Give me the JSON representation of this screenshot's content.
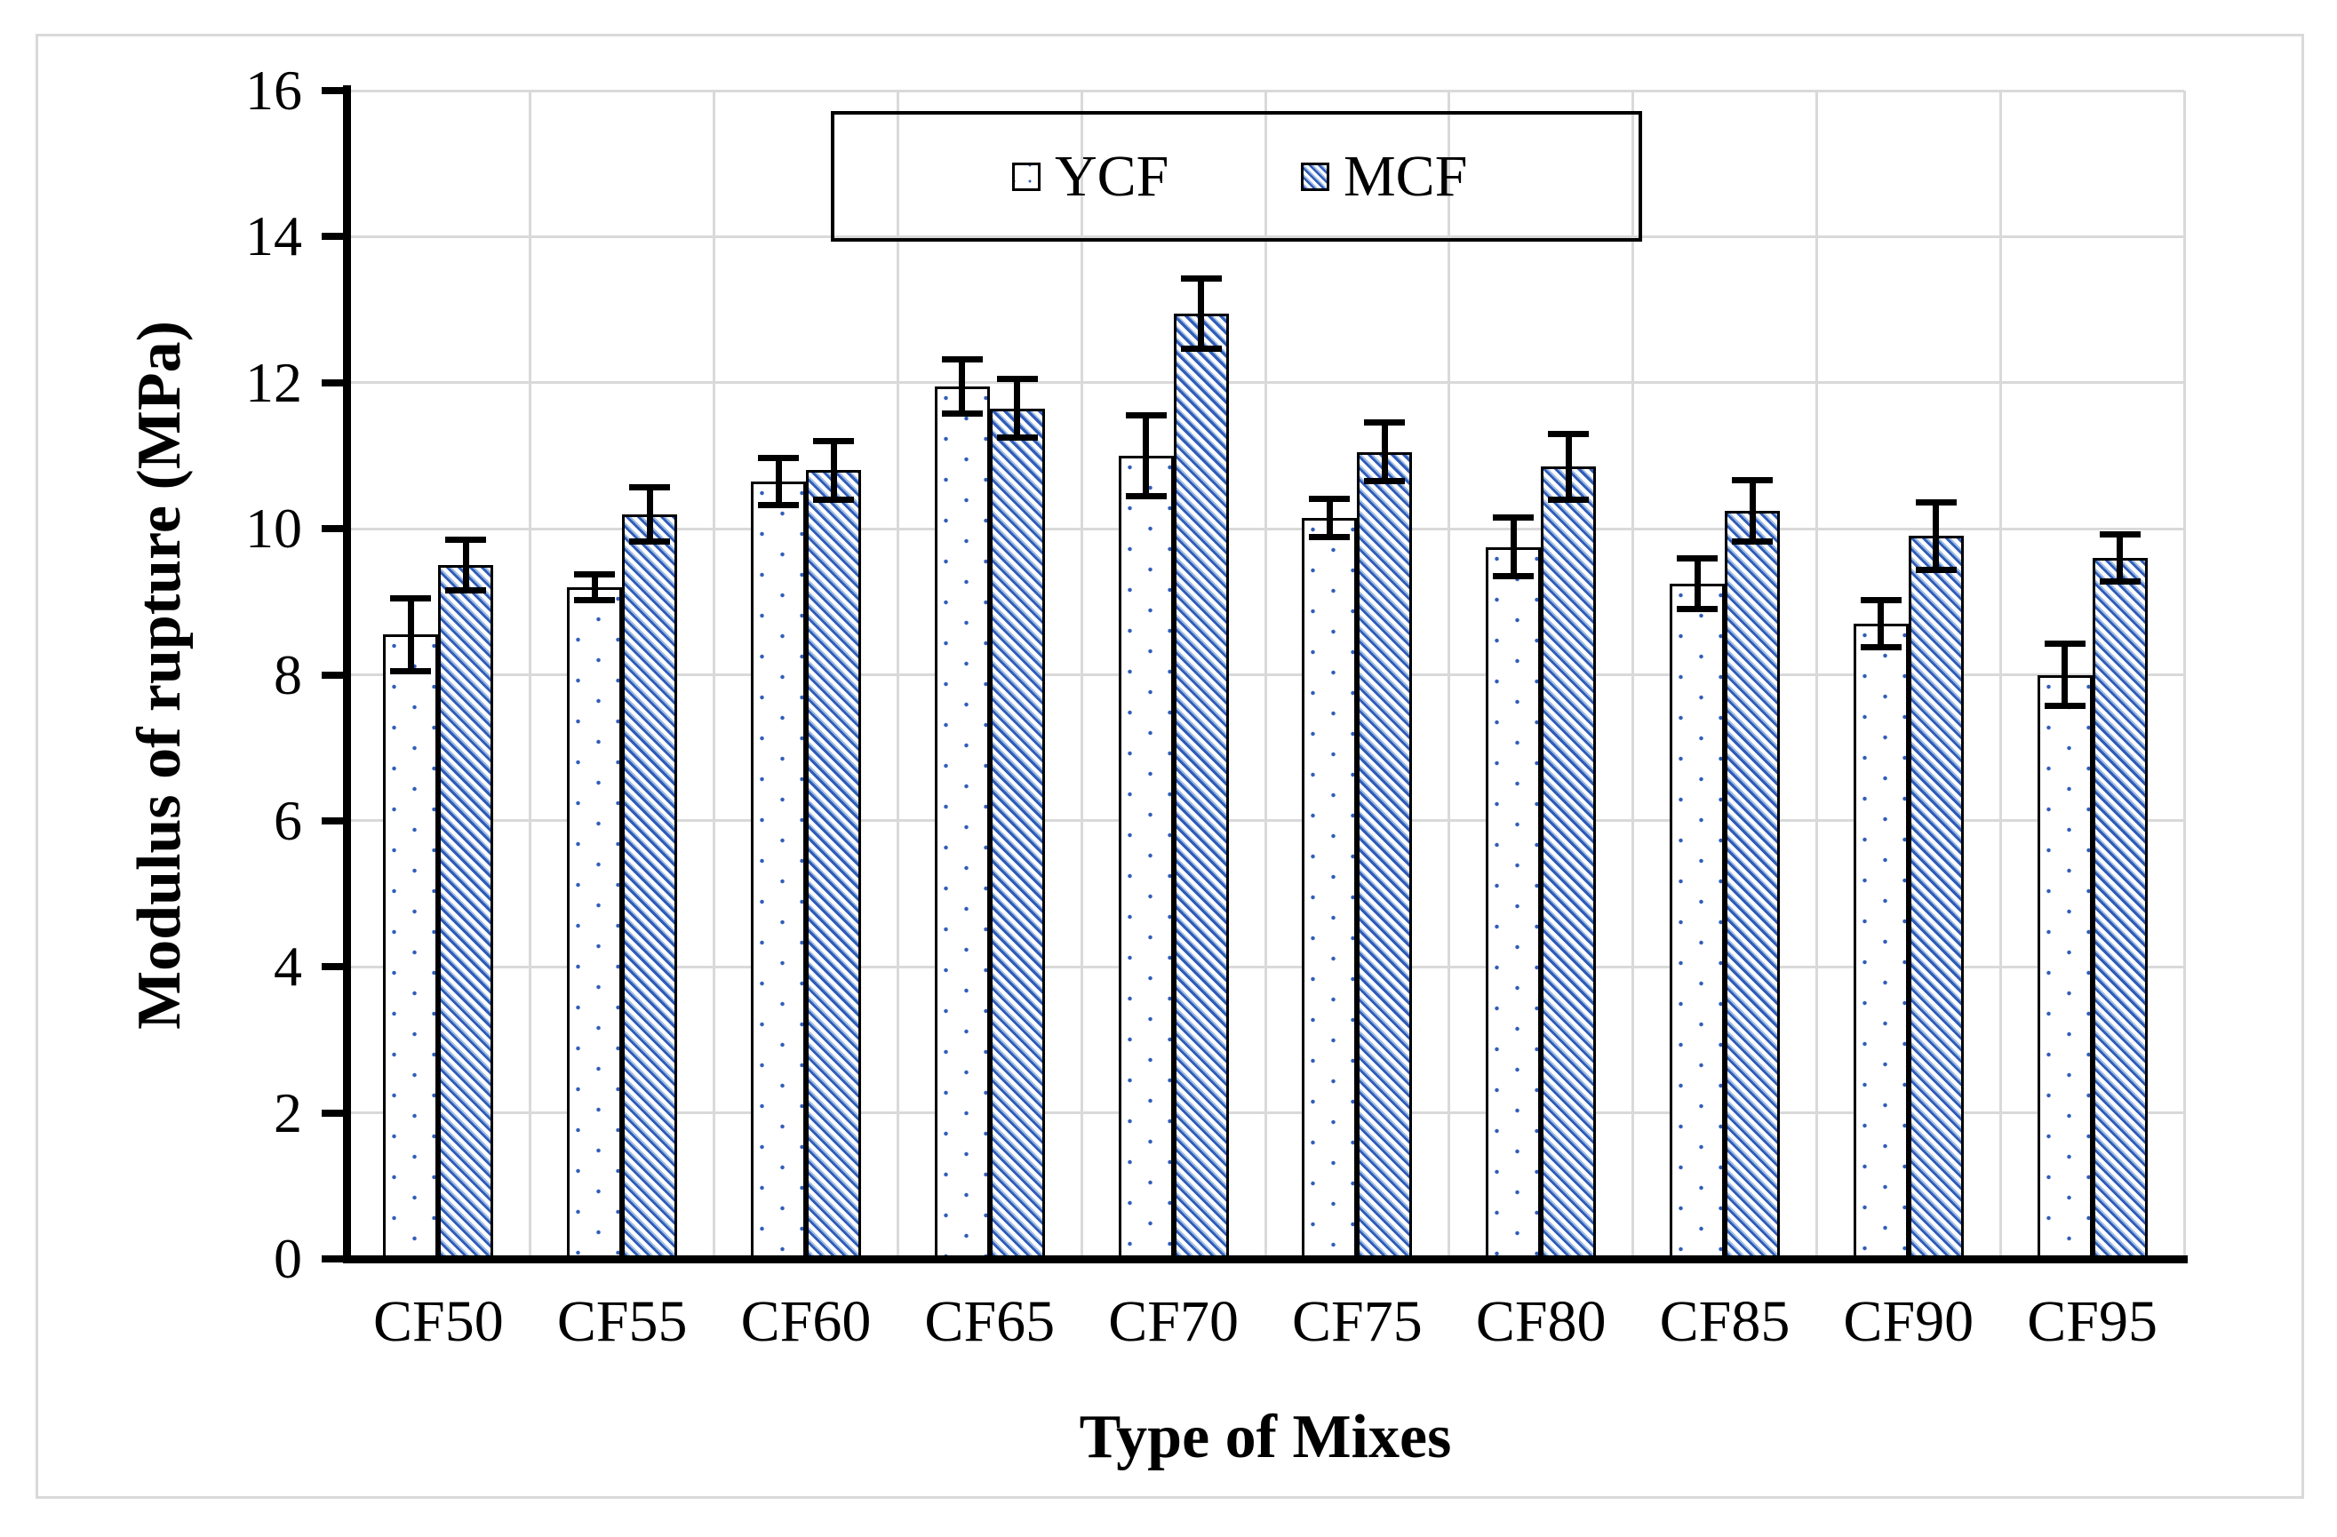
{
  "figure": {
    "background": "#ffffff",
    "frame_color": "#d9d9d9"
  },
  "chart_data": {
    "type": "bar",
    "title": "",
    "xlabel": "Type of Mixes",
    "ylabel": "Modulus of rupture (MPa)",
    "ylim": [
      0,
      16
    ],
    "ytick_step": 2,
    "ytick_labels": [
      "0",
      "2",
      "4",
      "6",
      "8",
      "10",
      "12",
      "14",
      "16"
    ],
    "grid": true,
    "legend_position": "top-center-inside",
    "categories": [
      "CF50",
      "CF55",
      "CF60",
      "CF65",
      "CF70",
      "CF75",
      "CF80",
      "CF85",
      "CF90",
      "CF95"
    ],
    "series": [
      {
        "name": "YCF",
        "pattern": "blue-dots-on-white",
        "values": [
          8.55,
          9.2,
          10.65,
          11.95,
          11.0,
          10.15,
          9.75,
          9.25,
          8.7,
          8.0
        ],
        "error_bars": [
          0.5,
          0.18,
          0.32,
          0.37,
          0.55,
          0.26,
          0.4,
          0.35,
          0.32,
          0.42
        ]
      },
      {
        "name": "MCF",
        "pattern": "blue-diagonal-hatch",
        "values": [
          9.5,
          10.2,
          10.8,
          11.65,
          12.95,
          11.05,
          10.85,
          10.25,
          9.9,
          9.6
        ],
        "error_bars": [
          0.35,
          0.37,
          0.4,
          0.4,
          0.48,
          0.4,
          0.45,
          0.42,
          0.46,
          0.32
        ]
      }
    ],
    "colors": {
      "pattern_blue": "#2f5cb8",
      "hatch_light_blue": "#9fbce4",
      "bar_border": "#000000",
      "gridline": "#d9d9d9",
      "axis": "#000000",
      "text": "#000000"
    }
  }
}
